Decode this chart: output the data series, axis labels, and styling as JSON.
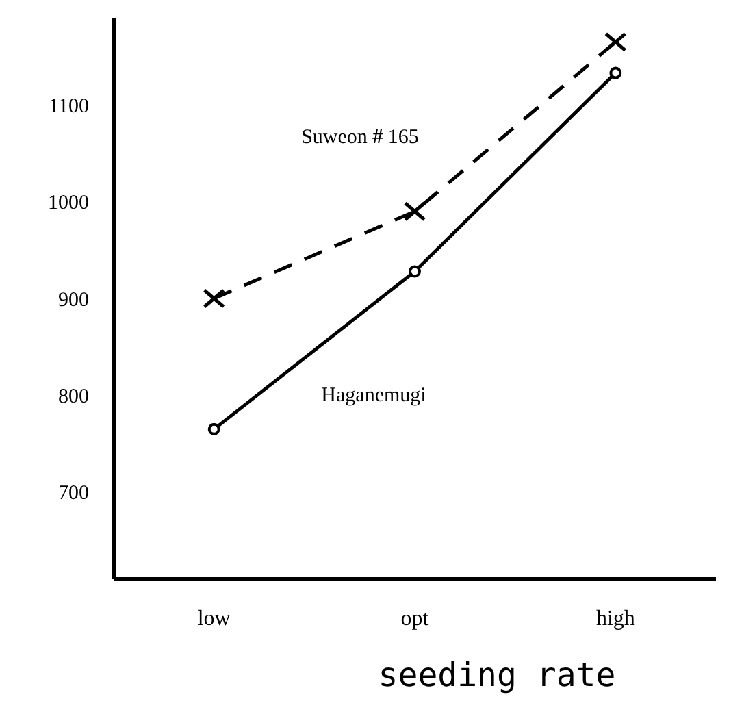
{
  "chart_data": {
    "type": "line",
    "xlabel": "seeding rate",
    "categories": [
      "low",
      "opt",
      "high"
    ],
    "series": [
      {
        "name": "Suweon＃165",
        "color": "#000000",
        "values": [
          900,
          990,
          1165
        ],
        "marker": "cross",
        "line_style": "dashed"
      },
      {
        "name": "Haganemugi",
        "color": "#000000",
        "values": [
          765,
          928,
          1133
        ],
        "marker": "circle",
        "line_style": "solid"
      }
    ],
    "ylim": [
      610,
      1190
    ],
    "yticks": [
      700,
      800,
      900,
      1000,
      1100
    ],
    "grid": false,
    "legend": false
  }
}
